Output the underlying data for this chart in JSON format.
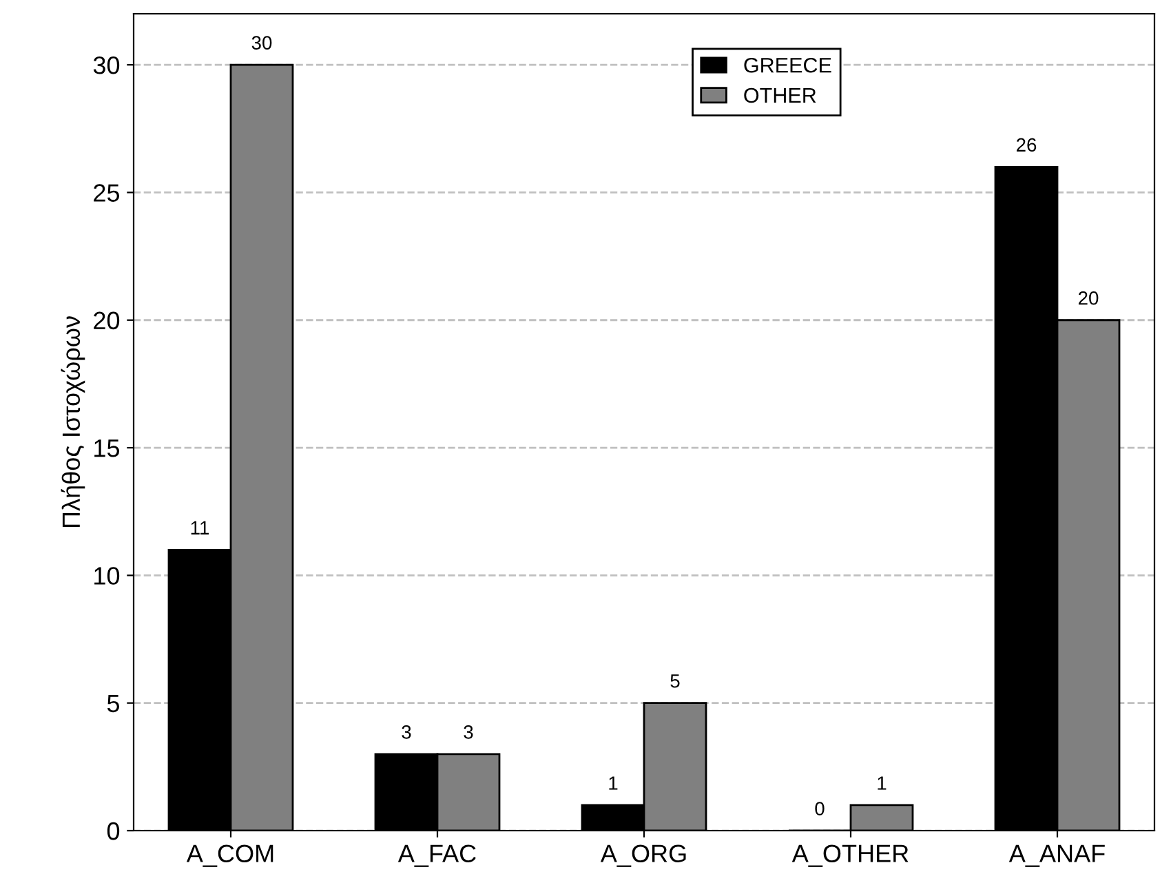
{
  "chart_data": {
    "type": "bar",
    "ylabel": "Πλήθος Ιστοχώρων",
    "categories": [
      "A_COM",
      "A_FAC",
      "A_ORG",
      "A_OTHER",
      "A_ANAF"
    ],
    "series": [
      {
        "name": "GREECE",
        "color": "#000000",
        "values": [
          11,
          3,
          1,
          0,
          26
        ]
      },
      {
        "name": "OTHER",
        "color": "#808080",
        "values": [
          30,
          3,
          5,
          1,
          20
        ]
      }
    ],
    "ylim": [
      0,
      32
    ],
    "yticks": [
      0,
      5,
      10,
      15,
      20,
      25,
      30
    ],
    "grid": "y",
    "legend": "top",
    "data_labels": true
  }
}
